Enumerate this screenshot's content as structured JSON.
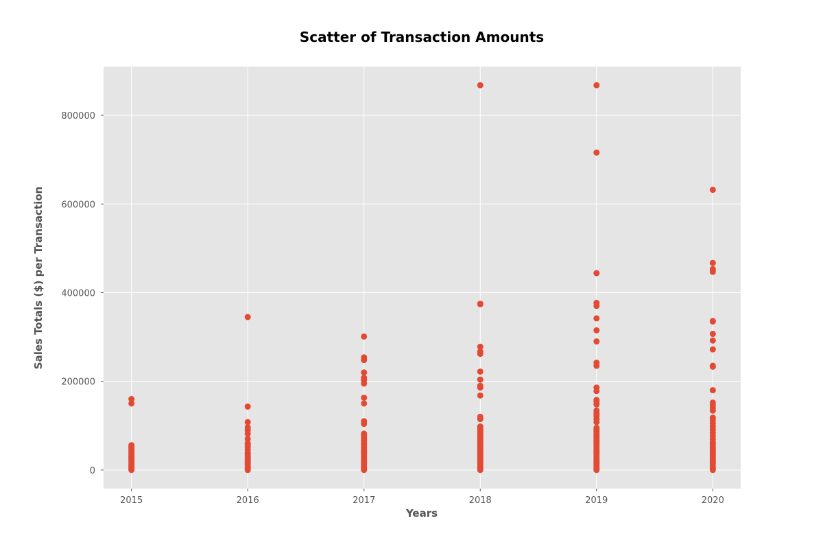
{
  "chart_data": {
    "type": "scatter",
    "title": "Scatter of Transaction Amounts",
    "xlabel": "Years",
    "ylabel": "Sales Totals ($) per Transaction",
    "xlim": [
      2014.76,
      2020.24
    ],
    "ylim": [
      -42000,
      910000
    ],
    "x_ticks": [
      2015,
      2016,
      2017,
      2018,
      2019,
      2020
    ],
    "y_ticks": [
      0,
      200000,
      400000,
      600000,
      800000
    ],
    "grid": true,
    "background_color": "#E5E5E5",
    "grid_color": "#FFFFFF",
    "point_color": "#E24A33",
    "series": [
      {
        "points": [
          [
            2015,
            0
          ],
          [
            2015,
            2000
          ],
          [
            2015,
            5000
          ],
          [
            2015,
            8000
          ],
          [
            2015,
            11000
          ],
          [
            2015,
            14000
          ],
          [
            2015,
            17000
          ],
          [
            2015,
            20000
          ],
          [
            2015,
            23000
          ],
          [
            2015,
            26000
          ],
          [
            2015,
            29000
          ],
          [
            2015,
            32000
          ],
          [
            2015,
            35000
          ],
          [
            2015,
            38000
          ],
          [
            2015,
            41000
          ],
          [
            2015,
            44000
          ],
          [
            2015,
            47000
          ],
          [
            2015,
            50000
          ],
          [
            2015,
            53000
          ],
          [
            2015,
            56000
          ],
          [
            2015,
            150000
          ],
          [
            2015,
            160000
          ],
          [
            2016,
            0
          ],
          [
            2016,
            3000
          ],
          [
            2016,
            7000
          ],
          [
            2016,
            11000
          ],
          [
            2016,
            15000
          ],
          [
            2016,
            19000
          ],
          [
            2016,
            23000
          ],
          [
            2016,
            27000
          ],
          [
            2016,
            31000
          ],
          [
            2016,
            35000
          ],
          [
            2016,
            39000
          ],
          [
            2016,
            46000
          ],
          [
            2016,
            52000
          ],
          [
            2016,
            56000
          ],
          [
            2016,
            60000
          ],
          [
            2016,
            70000
          ],
          [
            2016,
            82000
          ],
          [
            2016,
            90000
          ],
          [
            2016,
            96000
          ],
          [
            2016,
            108000
          ],
          [
            2016,
            143000
          ],
          [
            2016,
            345000
          ],
          [
            2017,
            0
          ],
          [
            2017,
            3000
          ],
          [
            2017,
            7000
          ],
          [
            2017,
            11000
          ],
          [
            2017,
            15000
          ],
          [
            2017,
            19000
          ],
          [
            2017,
            23000
          ],
          [
            2017,
            27000
          ],
          [
            2017,
            31000
          ],
          [
            2017,
            35000
          ],
          [
            2017,
            39000
          ],
          [
            2017,
            43000
          ],
          [
            2017,
            47000
          ],
          [
            2017,
            52000
          ],
          [
            2017,
            57000
          ],
          [
            2017,
            62000
          ],
          [
            2017,
            67000
          ],
          [
            2017,
            72000
          ],
          [
            2017,
            78000
          ],
          [
            2017,
            82000
          ],
          [
            2017,
            104000
          ],
          [
            2017,
            110000
          ],
          [
            2017,
            150000
          ],
          [
            2017,
            163000
          ],
          [
            2017,
            195000
          ],
          [
            2017,
            203000
          ],
          [
            2017,
            208000
          ],
          [
            2017,
            220000
          ],
          [
            2017,
            248000
          ],
          [
            2017,
            254000
          ],
          [
            2017,
            301000
          ],
          [
            2018,
            0
          ],
          [
            2018,
            3000
          ],
          [
            2018,
            7000
          ],
          [
            2018,
            11000
          ],
          [
            2018,
            15000
          ],
          [
            2018,
            19000
          ],
          [
            2018,
            23000
          ],
          [
            2018,
            27000
          ],
          [
            2018,
            31000
          ],
          [
            2018,
            35000
          ],
          [
            2018,
            39000
          ],
          [
            2018,
            43000
          ],
          [
            2018,
            47000
          ],
          [
            2018,
            51000
          ],
          [
            2018,
            55000
          ],
          [
            2018,
            59000
          ],
          [
            2018,
            63000
          ],
          [
            2018,
            67000
          ],
          [
            2018,
            71000
          ],
          [
            2018,
            75000
          ],
          [
            2018,
            79000
          ],
          [
            2018,
            83000
          ],
          [
            2018,
            87000
          ],
          [
            2018,
            91000
          ],
          [
            2018,
            95000
          ],
          [
            2018,
            98000
          ],
          [
            2018,
            115000
          ],
          [
            2018,
            120000
          ],
          [
            2018,
            168000
          ],
          [
            2018,
            186000
          ],
          [
            2018,
            190000
          ],
          [
            2018,
            204000
          ],
          [
            2018,
            222000
          ],
          [
            2018,
            262000
          ],
          [
            2018,
            267000
          ],
          [
            2018,
            278000
          ],
          [
            2018,
            374000
          ],
          [
            2018,
            375000
          ],
          [
            2018,
            868000
          ],
          [
            2019,
            0
          ],
          [
            2019,
            3000
          ],
          [
            2019,
            7000
          ],
          [
            2019,
            11000
          ],
          [
            2019,
            15000
          ],
          [
            2019,
            19000
          ],
          [
            2019,
            23000
          ],
          [
            2019,
            27000
          ],
          [
            2019,
            31000
          ],
          [
            2019,
            35000
          ],
          [
            2019,
            39000
          ],
          [
            2019,
            43000
          ],
          [
            2019,
            47000
          ],
          [
            2019,
            51000
          ],
          [
            2019,
            55000
          ],
          [
            2019,
            59000
          ],
          [
            2019,
            63000
          ],
          [
            2019,
            67000
          ],
          [
            2019,
            71000
          ],
          [
            2019,
            75000
          ],
          [
            2019,
            79000
          ],
          [
            2019,
            83000
          ],
          [
            2019,
            87000
          ],
          [
            2019,
            91000
          ],
          [
            2019,
            95000
          ],
          [
            2019,
            108000
          ],
          [
            2019,
            115000
          ],
          [
            2019,
            122000
          ],
          [
            2019,
            128000
          ],
          [
            2019,
            134000
          ],
          [
            2019,
            148000
          ],
          [
            2019,
            154000
          ],
          [
            2019,
            158000
          ],
          [
            2019,
            178000
          ],
          [
            2019,
            186000
          ],
          [
            2019,
            235000
          ],
          [
            2019,
            242000
          ],
          [
            2019,
            290000
          ],
          [
            2019,
            315000
          ],
          [
            2019,
            342000
          ],
          [
            2019,
            370000
          ],
          [
            2019,
            377000
          ],
          [
            2019,
            444000
          ],
          [
            2019,
            716000
          ],
          [
            2019,
            868000
          ],
          [
            2020,
            0
          ],
          [
            2020,
            3000
          ],
          [
            2020,
            7000
          ],
          [
            2020,
            11000
          ],
          [
            2020,
            15000
          ],
          [
            2020,
            19000
          ],
          [
            2020,
            23000
          ],
          [
            2020,
            27000
          ],
          [
            2020,
            31000
          ],
          [
            2020,
            35000
          ],
          [
            2020,
            39000
          ],
          [
            2020,
            43000
          ],
          [
            2020,
            47000
          ],
          [
            2020,
            51000
          ],
          [
            2020,
            55000
          ],
          [
            2020,
            59000
          ],
          [
            2020,
            63000
          ],
          [
            2020,
            70000
          ],
          [
            2020,
            77000
          ],
          [
            2020,
            84000
          ],
          [
            2020,
            91000
          ],
          [
            2020,
            98000
          ],
          [
            2020,
            105000
          ],
          [
            2020,
            112000
          ],
          [
            2020,
            118000
          ],
          [
            2020,
            134000
          ],
          [
            2020,
            140000
          ],
          [
            2020,
            146000
          ],
          [
            2020,
            152000
          ],
          [
            2020,
            180000
          ],
          [
            2020,
            233000
          ],
          [
            2020,
            235000
          ],
          [
            2020,
            272000
          ],
          [
            2020,
            292000
          ],
          [
            2020,
            307000
          ],
          [
            2020,
            335000
          ],
          [
            2020,
            336000
          ],
          [
            2020,
            447000
          ],
          [
            2020,
            453000
          ],
          [
            2020,
            467000
          ],
          [
            2020,
            632000
          ]
        ]
      }
    ]
  }
}
